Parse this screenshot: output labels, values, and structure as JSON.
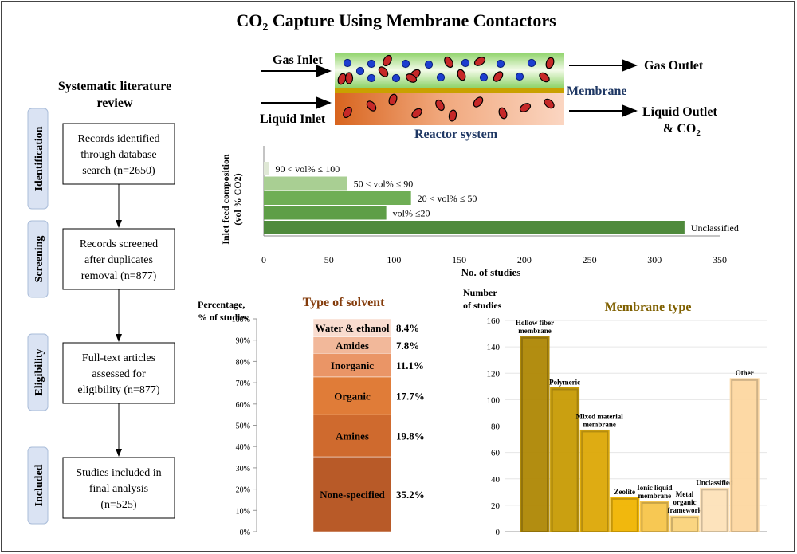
{
  "title_main": "CO",
  "title_sub": "2",
  "title_rest": " Capture Using Membrane Contactors",
  "review": {
    "title_line1": "Systematic literature",
    "title_line2": "review",
    "stages": [
      {
        "label": "Identification",
        "box": [
          "Records identified",
          "through database",
          "search (n=2650)"
        ]
      },
      {
        "label": "Screening",
        "box": [
          "Records screened",
          "after duplicates",
          "removal (n=877)"
        ]
      },
      {
        "label": "Eligibility",
        "box": [
          "Full-text articles",
          "assessed for",
          "eligibility (n=877)"
        ]
      },
      {
        "label": "Included",
        "box": [
          "Studies included in",
          "final analysis",
          "(n=525)"
        ]
      }
    ]
  },
  "reactor": {
    "gas_inlet": "Gas Inlet",
    "liquid_inlet": "Liquid Inlet",
    "gas_outlet": "Gas Outlet",
    "membrane": "Membrane",
    "liquid_outlet_1": "Liquid Outlet",
    "liquid_outlet_2a": "& CO",
    "liquid_outlet_2b": "2",
    "system": "Reactor system"
  },
  "chart_data": [
    {
      "type": "bar",
      "orientation": "horizontal",
      "title": "",
      "ylabel_line1": "Inlet feed composition",
      "ylabel_line2": "(vol % CO2)",
      "xlabel": "No. of studies",
      "xlim": [
        0,
        350
      ],
      "xticks": [
        "0",
        "50",
        "100",
        "150",
        "200",
        "250",
        "300",
        "350"
      ],
      "categories": [
        "90 < vol% ≤ 100",
        "50 < vol% ≤ 90",
        "20 < vol% ≤ 50",
        "vol% ≤20",
        "Unclassified"
      ],
      "values": [
        4,
        64,
        113,
        94,
        323
      ],
      "colors": [
        "#dfe8d5",
        "#a9cf93",
        "#6fae55",
        "#5e9e47",
        "#4f8a3c"
      ]
    },
    {
      "type": "stacked-bar",
      "title": "Type of solvent",
      "ylabel_line1": "Percentage,",
      "ylabel_line2": "% of studies",
      "yticks": [
        "0%",
        "10%",
        "20%",
        "30%",
        "40%",
        "50%",
        "60%",
        "70%",
        "80%",
        "90%",
        "100%"
      ],
      "categories": [
        "None-specified",
        "Amines",
        "Organic",
        "Inorganic",
        "Amides",
        "Water & ethanol"
      ],
      "values": [
        35.2,
        19.8,
        17.7,
        11.1,
        7.8,
        8.4
      ],
      "labels": [
        "35.2%",
        "19.8%",
        "17.7%",
        "11.1%",
        "7.8%",
        "8.4%"
      ],
      "colors": [
        "#b85a28",
        "#cf6a2e",
        "#e07c38",
        "#ea9566",
        "#f2b89a",
        "#f9dccf"
      ]
    },
    {
      "type": "bar",
      "title": "Membrane type",
      "ylabel_line1": "Number",
      "ylabel_line2": "of studies",
      "ylim": [
        0,
        160
      ],
      "yticks": [
        "0",
        "20",
        "40",
        "60",
        "80",
        "100",
        "120",
        "140",
        "160"
      ],
      "categories": [
        [
          "Hollow fiber",
          "membrane"
        ],
        [
          "Polymeric"
        ],
        [
          "Mixed material",
          "membrane"
        ],
        [
          "Zeolite"
        ],
        [
          "Ionic liquid",
          "membrane"
        ],
        [
          "Metal",
          "organic",
          "framework"
        ],
        [
          "Unclassified"
        ],
        [
          "Other"
        ]
      ],
      "values": [
        148,
        109,
        77,
        26,
        23,
        12,
        33,
        116
      ],
      "colors": [
        "#ae8704",
        "#c79b04",
        "#dca806",
        "#f0b400",
        "#f7c54a",
        "#fad37a",
        "#fde2b8",
        "#fdd7a0"
      ]
    }
  ]
}
